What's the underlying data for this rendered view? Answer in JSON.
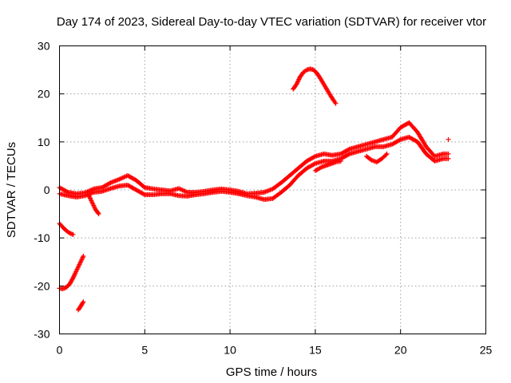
{
  "chart_data": {
    "type": "scatter",
    "title": "Day 174 of 2023, Sidereal Day-to-day VTEC variation (SDTVAR) for receiver vtor",
    "xlabel": "GPS time / hours",
    "ylabel": "SDTVAR / TECUs",
    "xlim": [
      0,
      25
    ],
    "ylim": [
      -30,
      30
    ],
    "xticks": [
      0,
      5,
      10,
      15,
      20,
      25
    ],
    "yticks": [
      -30,
      -20,
      -10,
      0,
      10,
      20,
      30
    ],
    "grid": true,
    "marker": "+",
    "color": "#ff0000",
    "series": [
      {
        "name": "main-track-upper",
        "x": [
          0.0,
          0.5,
          1.0,
          1.5,
          2.0,
          2.5,
          3.0,
          3.5,
          4.0,
          4.5,
          5.0,
          5.5,
          6.0,
          6.5,
          7.0,
          7.5,
          8.0,
          8.5,
          9.0,
          9.5,
          10.0,
          10.5,
          11.0,
          11.5,
          12.0,
          12.5,
          13.0,
          13.5,
          14.0,
          14.5,
          15.0,
          15.5,
          16.0,
          16.5,
          17.0,
          17.5,
          18.0,
          18.5,
          19.0,
          19.5,
          20.0,
          20.5,
          21.0,
          21.5,
          22.0,
          22.5,
          22.8
        ],
        "y": [
          0.5,
          -0.5,
          -0.8,
          -0.6,
          0.2,
          0.5,
          1.5,
          2.2,
          3.0,
          2.0,
          0.5,
          0.2,
          0.0,
          -0.2,
          0.3,
          -0.5,
          -0.5,
          -0.3,
          0.0,
          0.2,
          0.0,
          -0.3,
          -0.8,
          -0.7,
          -0.5,
          0.2,
          1.5,
          3.0,
          4.5,
          6.0,
          7.0,
          7.5,
          7.2,
          7.5,
          8.5,
          9.0,
          9.5,
          10.0,
          10.5,
          11.0,
          13.0,
          14.0,
          12.0,
          9.0,
          7.0,
          7.5,
          7.5
        ]
      },
      {
        "name": "main-track-lower",
        "x": [
          0.0,
          0.5,
          1.0,
          1.5,
          2.0,
          2.5,
          3.0,
          3.5,
          4.0,
          4.5,
          5.0,
          5.5,
          6.0,
          6.5,
          7.0,
          7.5,
          8.0,
          8.5,
          9.0,
          9.5,
          10.0,
          10.5,
          11.0,
          11.5,
          12.0,
          12.5,
          13.0,
          13.5,
          14.0,
          14.5,
          15.0,
          15.5,
          16.0,
          16.5,
          17.0,
          17.5,
          18.0,
          18.5,
          19.0,
          19.5,
          20.0,
          20.5,
          21.0,
          21.5,
          22.0,
          22.5,
          22.8
        ],
        "y": [
          -0.8,
          -1.2,
          -1.5,
          -1.2,
          -0.5,
          -0.3,
          0.3,
          0.8,
          1.0,
          0.0,
          -1.0,
          -1.0,
          -0.8,
          -0.8,
          -1.2,
          -1.3,
          -1.0,
          -0.8,
          -0.5,
          -0.3,
          -0.5,
          -0.8,
          -1.2,
          -1.5,
          -2.0,
          -1.8,
          -0.5,
          1.0,
          3.0,
          4.5,
          5.5,
          6.0,
          6.0,
          6.5,
          7.5,
          8.0,
          8.5,
          9.0,
          9.0,
          9.5,
          10.5,
          11.0,
          10.0,
          7.5,
          6.0,
          6.5,
          6.5
        ]
      },
      {
        "name": "high-arc",
        "x": [
          13.7,
          13.9,
          14.1,
          14.3,
          14.5,
          14.7,
          14.9,
          15.1,
          15.3,
          15.5,
          15.7,
          15.9,
          16.1,
          16.2
        ],
        "y": [
          21.0,
          22.0,
          23.5,
          24.5,
          25.0,
          25.2,
          25.0,
          24.3,
          23.2,
          22.0,
          20.8,
          19.6,
          18.5,
          18.0
        ]
      },
      {
        "name": "mid-dip",
        "x": [
          18.0,
          18.3,
          18.6,
          18.9,
          19.2
        ],
        "y": [
          7.0,
          6.2,
          5.8,
          6.5,
          7.5
        ]
      },
      {
        "name": "step-segment",
        "x": [
          15.0,
          15.4,
          15.8,
          16.2,
          16.5
        ],
        "y": [
          4.0,
          4.8,
          5.3,
          5.8,
          6.0
        ]
      },
      {
        "name": "negative-short-1",
        "x": [
          0.0,
          0.2,
          0.4,
          0.6,
          0.8
        ],
        "y": [
          -7.0,
          -7.8,
          -8.5,
          -9.0,
          -9.3
        ]
      },
      {
        "name": "negative-long",
        "x": [
          0.0,
          0.2,
          0.4,
          0.6,
          0.8,
          1.0,
          1.2,
          1.4
        ],
        "y": [
          -20.5,
          -20.6,
          -20.3,
          -19.6,
          -18.3,
          -16.8,
          -15.3,
          -13.8
        ]
      },
      {
        "name": "negative-short-2",
        "x": [
          1.1,
          1.25,
          1.4
        ],
        "y": [
          -25.0,
          -24.2,
          -23.3
        ]
      },
      {
        "name": "early-drop",
        "x": [
          1.7,
          1.9,
          2.1,
          2.3
        ],
        "y": [
          -1.0,
          -2.5,
          -4.0,
          -5.0
        ]
      },
      {
        "name": "outlier",
        "x": [
          22.8
        ],
        "y": [
          10.5
        ]
      }
    ]
  }
}
